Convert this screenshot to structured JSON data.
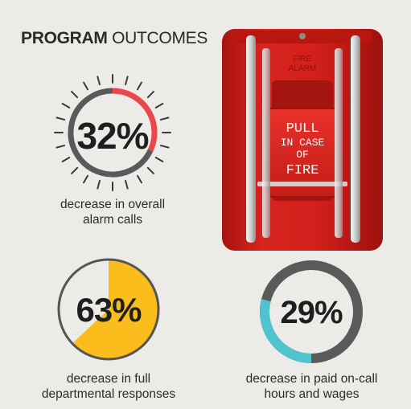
{
  "title": {
    "bold": "PROGRAM",
    "light": "OUTCOMES"
  },
  "metrics": [
    {
      "value": "32%",
      "fraction": 0.32,
      "caption": [
        "decrease in overall",
        "alarm calls"
      ],
      "accent": "#e8474c",
      "track": "#5a5a5a"
    },
    {
      "value": "63%",
      "fraction": 0.63,
      "caption": [
        "decrease in full",
        "departmental responses"
      ],
      "accent": "#fbbd1b",
      "track": "#555555"
    },
    {
      "value": "29%",
      "fraction": 0.29,
      "caption": [
        "decrease in paid on-call",
        "hours and wages"
      ],
      "accent": "#4fc4cf",
      "track": "#5a5a5a"
    }
  ],
  "fire_alarm": {
    "top_label": [
      "FIRE",
      "ALARM"
    ],
    "handle_label": [
      "PULL",
      "IN CASE",
      "OF",
      "FIRE"
    ],
    "body_color": "#d21f1b",
    "handle_color": "#e02a23"
  }
}
